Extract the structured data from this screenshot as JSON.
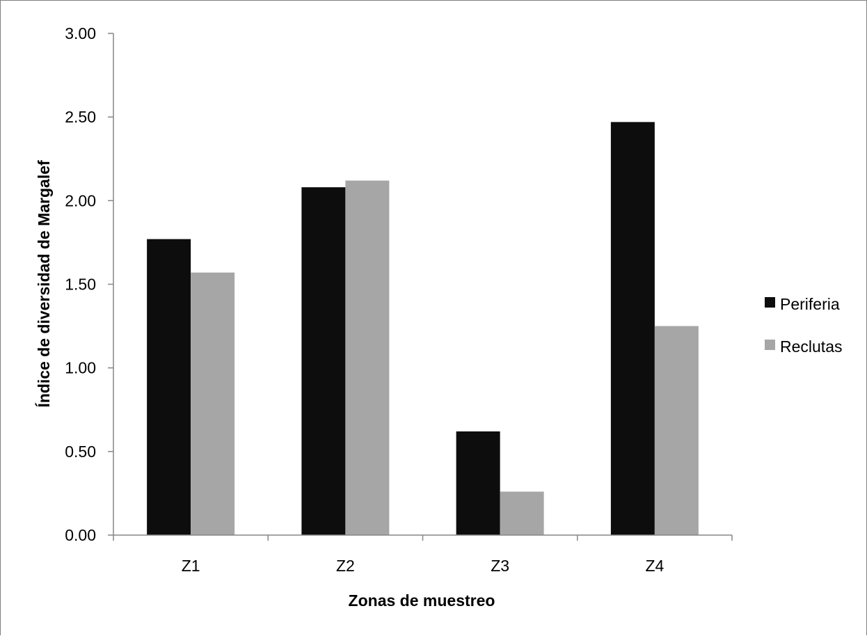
{
  "chart_data": {
    "type": "bar",
    "title": "",
    "xlabel": "Zonas de muestreo",
    "ylabel": "Índice de diversidad de Margalef",
    "categories": [
      "Z1",
      "Z2",
      "Z3",
      "Z4"
    ],
    "series": [
      {
        "name": "Periferia",
        "color": "#0d0d0d",
        "values": [
          1.77,
          2.08,
          0.62,
          2.47
        ]
      },
      {
        "name": "Reclutas",
        "color": "#a6a6a6",
        "values": [
          1.57,
          2.12,
          0.26,
          1.25
        ]
      }
    ],
    "ylim": [
      0,
      3
    ],
    "yticks": [
      "0.00",
      "0.50",
      "1.00",
      "1.50",
      "2.00",
      "2.50",
      "3.00"
    ],
    "grid": false,
    "legend_position": "right"
  }
}
